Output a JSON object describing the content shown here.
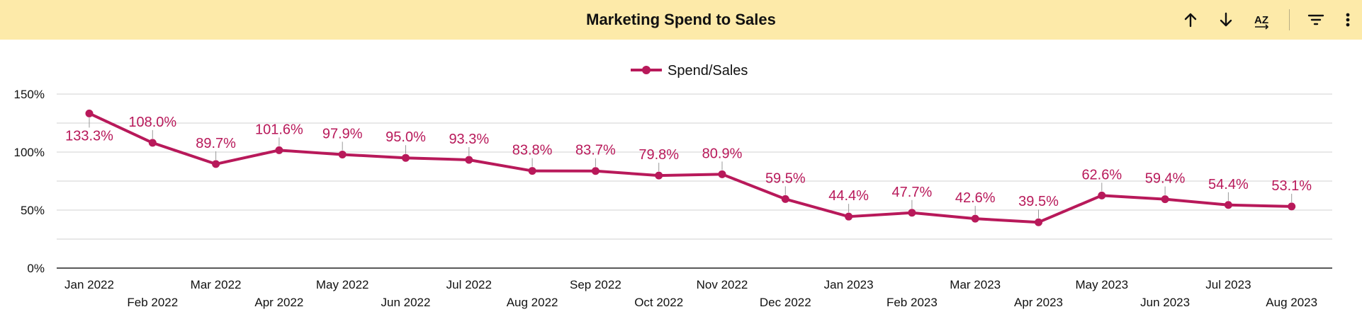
{
  "header": {
    "title": "Marketing Spend to Sales",
    "icons": [
      "arrow-up-icon",
      "arrow-down-icon",
      "sort-az-icon",
      "filter-icon",
      "more-vert-icon"
    ],
    "sort_az_label": "AZ"
  },
  "colors": {
    "header_bg": "#fdeaa9",
    "series": "#b8195a",
    "grid": "#d0d0d0",
    "axis": "#222222",
    "text": "#111111"
  },
  "chart_data": {
    "type": "line",
    "title": "Marketing Spend to Sales",
    "xlabel": "",
    "ylabel": "",
    "ylim": [
      0,
      150
    ],
    "yticks": [
      0,
      50,
      100,
      150
    ],
    "ytick_labels": [
      "0%",
      "50%",
      "100%",
      "150%"
    ],
    "grid": true,
    "legend_position": "top-center",
    "categories": [
      "Jan 2022",
      "Feb 2022",
      "Mar 2022",
      "Apr 2022",
      "May 2022",
      "Jun 2022",
      "Jul 2022",
      "Aug 2022",
      "Sep 2022",
      "Oct 2022",
      "Nov 2022",
      "Dec 2022",
      "Jan 2023",
      "Feb 2023",
      "Mar 2023",
      "Apr 2023",
      "May 2023",
      "Jun 2023",
      "Jul 2023",
      "Aug 2023"
    ],
    "series": [
      {
        "name": "Spend/Sales",
        "values": [
          133.3,
          108.0,
          89.7,
          101.6,
          97.9,
          95.0,
          93.3,
          83.8,
          83.7,
          79.8,
          80.9,
          59.5,
          44.4,
          47.7,
          42.6,
          39.5,
          62.6,
          59.4,
          54.4,
          53.1
        ],
        "labels": [
          "133.3%",
          "108.0%",
          "89.7%",
          "101.6%",
          "97.9%",
          "95.0%",
          "93.3%",
          "83.8%",
          "83.7%",
          "79.8%",
          "80.9%",
          "59.5%",
          "44.4%",
          "47.7%",
          "42.6%",
          "39.5%",
          "62.6%",
          "59.4%",
          "54.4%",
          "53.1%"
        ]
      }
    ]
  }
}
